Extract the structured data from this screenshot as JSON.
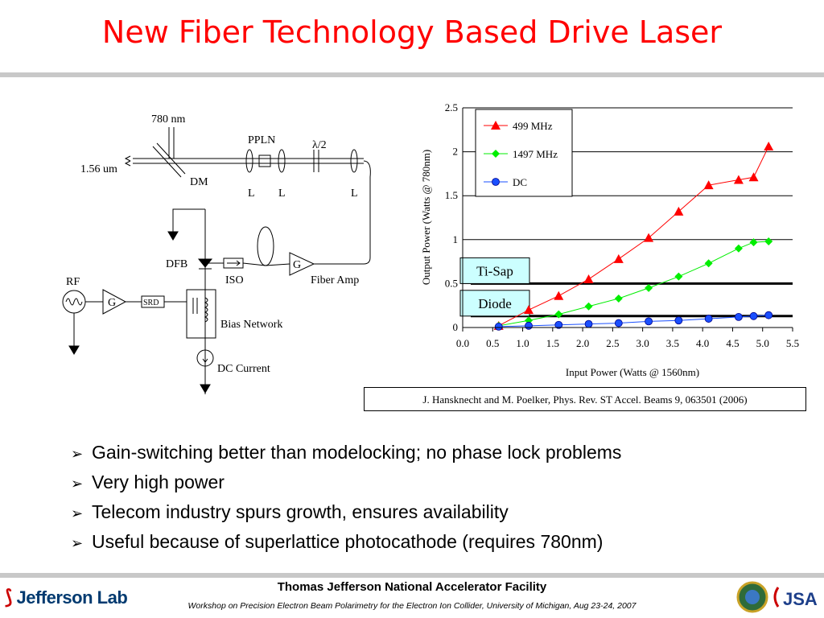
{
  "title": "New Fiber Technology Based Drive Laser",
  "diagram": {
    "nm780": "780 nm",
    "um156": "1.56 um",
    "dm": "DM",
    "ppln": "PPLN",
    "lambda": "λ/2",
    "lens1": "L",
    "lens2": "L",
    "lens3": "L",
    "dfb": "DFB",
    "iso": "ISO",
    "g1": "G",
    "fiber_amp": "Fiber Amp",
    "rf": "RF",
    "g2": "G",
    "srd": "SRD",
    "bias": "Bias Network",
    "dc_current": "DC Current"
  },
  "chart_data": {
    "type": "line",
    "xlabel": "Input Power (Watts @ 1560nm)",
    "ylabel": "Output Power (Watts @ 780nm)",
    "xlim": [
      0.0,
      5.5
    ],
    "ylim": [
      0,
      2.5
    ],
    "x_ticks": [
      "0.0",
      "0.5",
      "1.0",
      "1.5",
      "2.0",
      "2.5",
      "3.0",
      "3.5",
      "4.0",
      "4.5",
      "5.0",
      "5.5"
    ],
    "y_ticks": [
      "0",
      "0.5",
      "1",
      "1.5",
      "2",
      "2.5"
    ],
    "grid": "horizontal",
    "legend_position": "top-left",
    "series": [
      {
        "name": "499 MHz",
        "color": "#ff0000",
        "marker": "triangle",
        "x": [
          0.6,
          1.1,
          1.6,
          2.1,
          2.6,
          3.1,
          3.6,
          4.1,
          4.6,
          4.85,
          5.1
        ],
        "y": [
          0.02,
          0.2,
          0.36,
          0.55,
          0.78,
          1.02,
          1.32,
          1.62,
          1.68,
          1.71,
          2.06
        ]
      },
      {
        "name": "1497 MHz",
        "color": "#00ee00",
        "marker": "diamond",
        "x": [
          0.6,
          1.1,
          1.6,
          2.1,
          2.6,
          3.1,
          3.6,
          4.1,
          4.6,
          4.85,
          5.1
        ],
        "y": [
          0.02,
          0.08,
          0.15,
          0.24,
          0.33,
          0.45,
          0.58,
          0.73,
          0.9,
          0.97,
          0.98
        ]
      },
      {
        "name": "DC",
        "color": "#1a4fff",
        "marker": "circle",
        "x": [
          0.6,
          1.1,
          1.6,
          2.1,
          2.6,
          3.1,
          3.6,
          4.1,
          4.6,
          4.85,
          5.1
        ],
        "y": [
          0.01,
          0.02,
          0.03,
          0.04,
          0.05,
          0.07,
          0.08,
          0.1,
          0.12,
          0.13,
          0.14
        ]
      }
    ],
    "reference_lines": [
      {
        "label": "Ti-Sap",
        "y": 0.5
      },
      {
        "label": "Diode",
        "y": 0.13
      }
    ]
  },
  "citation": "J. Hansknecht and M. Poelker, Phys. Rev. ST Accel. Beams 9, 063501 (2006)",
  "bullets": [
    "Gain-switching better than modelocking; no phase lock problems",
    "Very high power",
    "Telecom industry spurs growth, ensures availability",
    "Useful because of superlattice photocathode (requires 780nm)"
  ],
  "footer": {
    "facility": "Thomas Jefferson National Accelerator Facility",
    "workshop": "Workshop on Precision Electron Beam Polarimetry for the Electron Ion Collider, University of Michigan, Aug 23-24, 2007",
    "lab_logo": "Jefferson Lab",
    "jsa_logo": "JSA"
  },
  "colors": {
    "title": "#ff0000",
    "rule": "#c8c8c8",
    "refbox": "#ccffff"
  }
}
